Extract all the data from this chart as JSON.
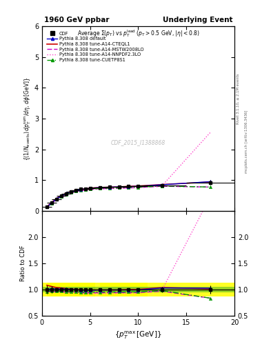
{
  "title_left": "1960 GeV ppbar",
  "title_right": "Underlying Event",
  "watermark": "CDF_2015_I1388868",
  "right_label1": "Rivet 3.1.10, ≥ 2.1M events",
  "right_label2": "mcplots.cern.ch [arXiv:1306.3436]",
  "ylim_main": [
    0.0,
    6.0
  ],
  "ylim_ratio": [
    0.5,
    2.5
  ],
  "xlim": [
    0,
    20
  ],
  "cdf_x": [
    0.5,
    1.0,
    1.5,
    2.0,
    2.5,
    3.0,
    3.5,
    4.0,
    4.5,
    5.0,
    6.0,
    7.0,
    8.0,
    9.0,
    10.0,
    12.5,
    17.5
  ],
  "cdf_y": [
    0.12,
    0.25,
    0.38,
    0.48,
    0.56,
    0.62,
    0.66,
    0.7,
    0.72,
    0.74,
    0.76,
    0.77,
    0.78,
    0.79,
    0.8,
    0.82,
    0.92
  ],
  "cdf_yerr": [
    0.01,
    0.015,
    0.012,
    0.01,
    0.01,
    0.01,
    0.01,
    0.01,
    0.01,
    0.01,
    0.01,
    0.01,
    0.01,
    0.01,
    0.01,
    0.04,
    0.07
  ],
  "cdf_xerr": [
    0.5,
    0.5,
    0.5,
    0.5,
    0.5,
    0.5,
    0.5,
    0.5,
    0.5,
    0.5,
    1.0,
    1.0,
    1.0,
    1.0,
    1.0,
    2.5,
    2.5
  ],
  "default_x": [
    0.5,
    1.0,
    1.5,
    2.0,
    2.5,
    3.0,
    3.5,
    4.0,
    4.5,
    5.0,
    6.0,
    7.0,
    8.0,
    9.0,
    10.0,
    12.5,
    17.5
  ],
  "default_y": [
    0.12,
    0.255,
    0.385,
    0.485,
    0.565,
    0.62,
    0.66,
    0.69,
    0.71,
    0.73,
    0.755,
    0.765,
    0.775,
    0.785,
    0.795,
    0.845,
    0.945
  ],
  "cteql1_x": [
    0.5,
    1.0,
    1.5,
    2.0,
    2.5,
    3.0,
    3.5,
    4.0,
    4.5,
    5.0,
    6.0,
    7.0,
    8.0,
    9.0,
    10.0,
    12.5,
    17.5
  ],
  "cteql1_y": [
    0.13,
    0.265,
    0.395,
    0.495,
    0.57,
    0.625,
    0.665,
    0.695,
    0.715,
    0.735,
    0.755,
    0.765,
    0.775,
    0.792,
    0.803,
    0.852,
    0.935
  ],
  "mstw_x": [
    0.5,
    1.0,
    1.5,
    2.0,
    2.5,
    3.0,
    3.5,
    4.0,
    4.5,
    5.0,
    6.0,
    7.0,
    8.0,
    9.0,
    10.0,
    12.5,
    17.5
  ],
  "mstw_y": [
    0.115,
    0.24,
    0.365,
    0.46,
    0.535,
    0.59,
    0.63,
    0.66,
    0.675,
    0.695,
    0.715,
    0.725,
    0.735,
    0.745,
    0.755,
    0.795,
    0.77
  ],
  "nnpdf_x": [
    0.5,
    1.0,
    1.5,
    2.0,
    2.5,
    3.0,
    3.5,
    4.0,
    4.5,
    5.0,
    6.0,
    7.0,
    8.0,
    9.0,
    10.0,
    12.5,
    17.5
  ],
  "nnpdf_y": [
    0.115,
    0.24,
    0.36,
    0.455,
    0.525,
    0.58,
    0.62,
    0.65,
    0.665,
    0.685,
    0.705,
    0.715,
    0.725,
    0.735,
    0.745,
    0.82,
    2.55
  ],
  "cuetp_x": [
    0.5,
    1.0,
    1.5,
    2.0,
    2.5,
    3.0,
    3.5,
    4.0,
    4.5,
    5.0,
    6.0,
    7.0,
    8.0,
    9.0,
    10.0,
    12.5,
    17.5
  ],
  "cuetp_y": [
    0.115,
    0.245,
    0.37,
    0.465,
    0.54,
    0.595,
    0.635,
    0.665,
    0.685,
    0.705,
    0.725,
    0.735,
    0.745,
    0.755,
    0.765,
    0.805,
    0.77
  ],
  "color_cdf": "#000000",
  "color_default": "#0000cc",
  "color_cteql1": "#cc0000",
  "color_mstw": "#cc00cc",
  "color_nnpdf": "#ff44cc",
  "color_cuetp": "#009900"
}
